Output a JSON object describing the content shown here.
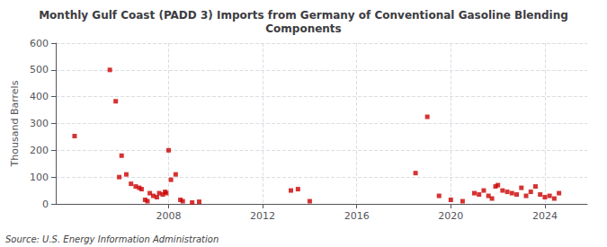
{
  "chart_data": {
    "type": "scatter",
    "title": "Monthly Gulf Coast (PADD 3) Imports from Germany of Conventional Gasoline Blending\nComponents",
    "ylabel": "Thousand Barrels",
    "annotations": [
      "Source: U.S. Energy Information Administration"
    ],
    "color": "#cc0000",
    "marker": "square",
    "grid": true,
    "xlim": [
      2003.2,
      2025.8
    ],
    "xticks": [
      2008,
      2012,
      2016,
      2020,
      2024
    ],
    "ylim": [
      0,
      600
    ],
    "yticks": [
      0,
      100,
      200,
      300,
      400,
      500,
      600
    ],
    "x": [
      2004.0,
      2005.5,
      2005.75,
      2005.9,
      2006.0,
      2006.2,
      2006.4,
      2006.6,
      2006.75,
      2006.85,
      2007.0,
      2007.1,
      2007.2,
      2007.35,
      2007.5,
      2007.6,
      2007.75,
      2007.85,
      2007.9,
      2008.0,
      2008.1,
      2008.3,
      2008.5,
      2008.6,
      2009.0,
      2009.3,
      2013.2,
      2013.5,
      2014.0,
      2018.5,
      2019.0,
      2019.5,
      2020.0,
      2020.5,
      2021.0,
      2021.2,
      2021.4,
      2021.6,
      2021.75,
      2021.9,
      2022.0,
      2022.2,
      2022.4,
      2022.6,
      2022.8,
      2023.0,
      2023.2,
      2023.4,
      2023.6,
      2023.8,
      2024.0,
      2024.2,
      2024.4,
      2024.6
    ],
    "values": [
      253,
      500,
      383,
      100,
      180,
      110,
      75,
      65,
      60,
      55,
      15,
      10,
      40,
      30,
      25,
      40,
      35,
      45,
      40,
      200,
      90,
      110,
      15,
      10,
      5,
      8,
      50,
      55,
      10,
      115,
      325,
      30,
      15,
      10,
      40,
      35,
      50,
      30,
      20,
      65,
      70,
      50,
      45,
      40,
      35,
      60,
      30,
      45,
      65,
      35,
      25,
      30,
      20,
      40
    ]
  }
}
